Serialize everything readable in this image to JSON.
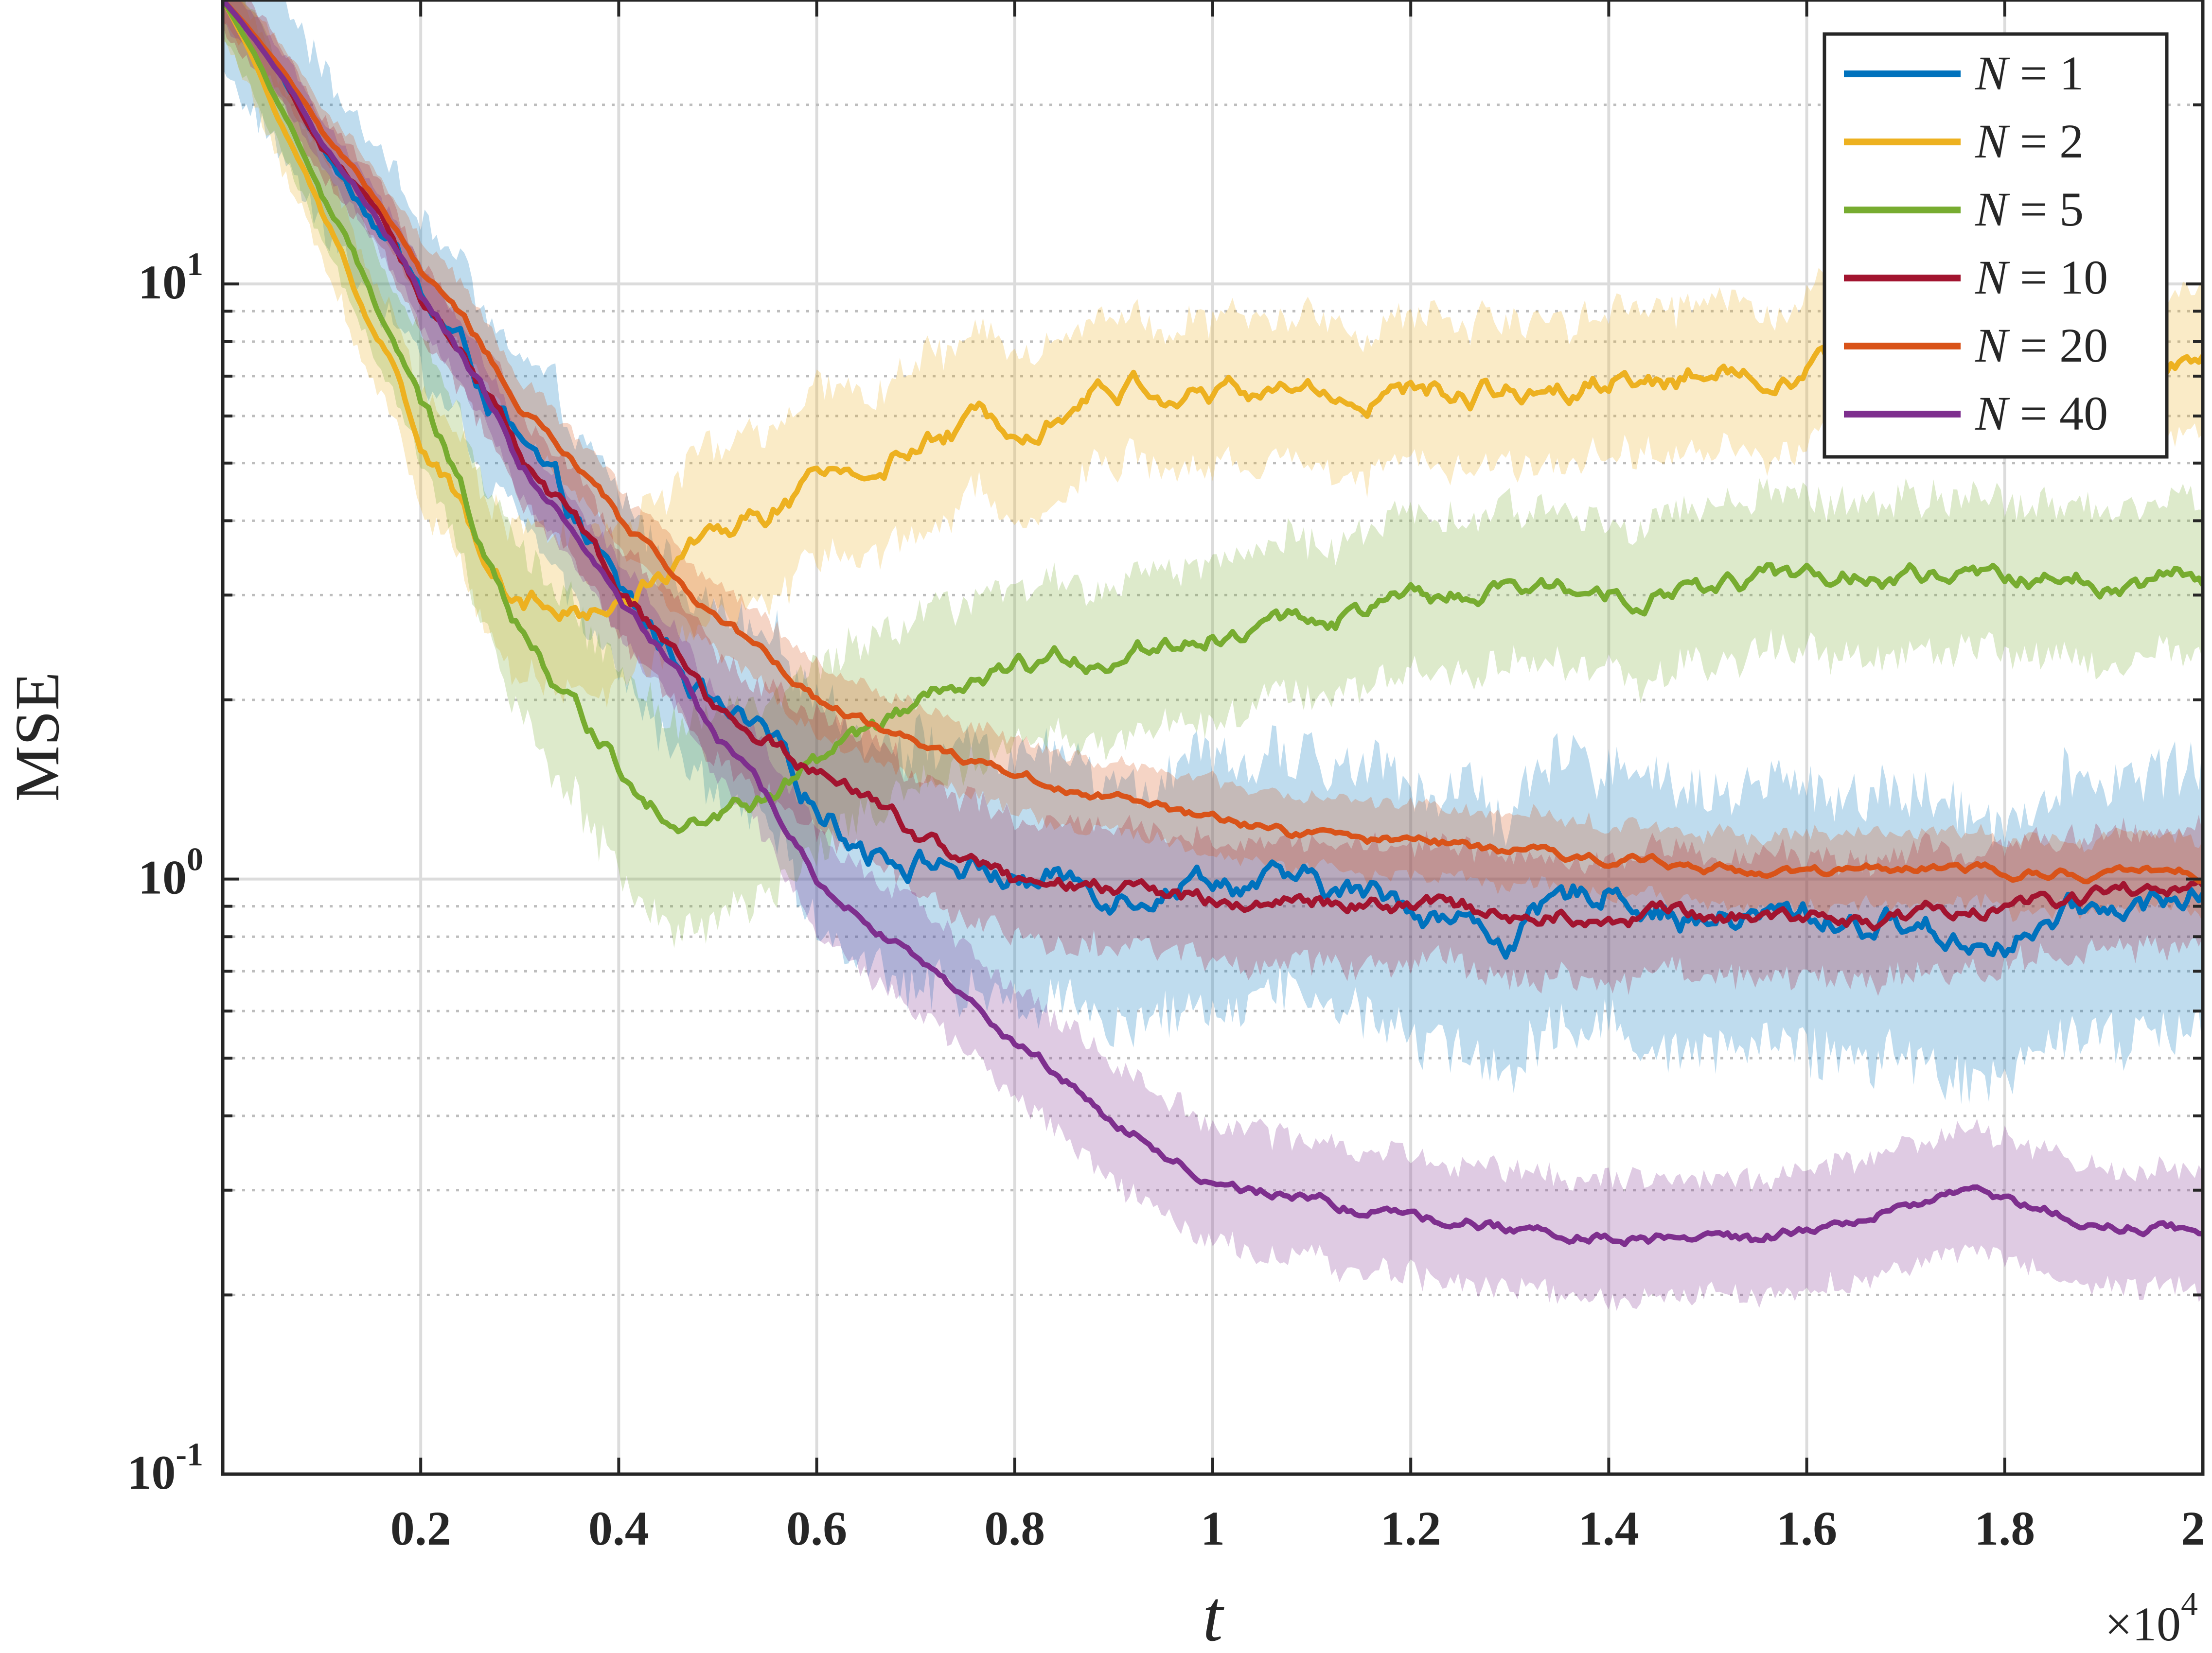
{
  "chart_data": {
    "type": "line",
    "xlabel": "t",
    "ylabel": "MSE",
    "x_multiplier": "×10",
    "x_multiplier_exp": "4",
    "xlim": [
      0,
      20000
    ],
    "ylim": [
      0.1,
      30
    ],
    "yscale": "log",
    "grid": true,
    "legend_position": "top-right",
    "x_ticks": [
      {
        "value": 2000,
        "label": "0.2"
      },
      {
        "value": 4000,
        "label": "0.4"
      },
      {
        "value": 6000,
        "label": "0.6"
      },
      {
        "value": 8000,
        "label": "0.8"
      },
      {
        "value": 10000,
        "label": "1"
      },
      {
        "value": 12000,
        "label": "1.2"
      },
      {
        "value": 14000,
        "label": "1.4"
      },
      {
        "value": 16000,
        "label": "1.6"
      },
      {
        "value": 18000,
        "label": "1.8"
      },
      {
        "value": 20000,
        "label": "2"
      }
    ],
    "y_ticks": [
      {
        "value": 0.1,
        "base": "10",
        "exp": "-1"
      },
      {
        "value": 1,
        "base": "10",
        "exp": "0"
      },
      {
        "value": 10,
        "base": "10",
        "exp": "1"
      }
    ],
    "series": [
      {
        "name": "N = 1",
        "name_var": "N",
        "name_val": "1",
        "color": "#0072BD",
        "x": [
          0,
          1000,
          2000,
          3000,
          4000,
          5000,
          6000,
          6500,
          7000,
          8000,
          9000,
          10000,
          11000,
          12000,
          12500,
          13000,
          13500,
          14000,
          15000,
          16000,
          17000,
          17500,
          18000,
          19000,
          20000
        ],
        "y": [
          30,
          17,
          9.5,
          5.2,
          2.95,
          1.9,
          1.35,
          1.15,
          1.1,
          1.0,
          0.97,
          1.03,
          0.95,
          0.92,
          0.85,
          0.8,
          0.88,
          0.98,
          0.85,
          0.86,
          0.84,
          0.8,
          0.8,
          0.88,
          0.95
        ],
        "band": [
          0.13,
          0.13,
          0.13,
          0.14,
          0.15,
          0.16,
          0.18,
          0.2,
          0.2,
          0.2,
          0.2,
          0.2,
          0.2,
          0.21,
          0.22,
          0.22,
          0.22,
          0.22,
          0.22,
          0.22,
          0.22,
          0.22,
          0.22,
          0.22,
          0.22
        ]
      },
      {
        "name": "N = 2",
        "name_var": "N",
        "name_val": "2",
        "color": "#EDB120",
        "x": [
          0,
          500,
          1000,
          1500,
          2000,
          2500,
          3000,
          3500,
          4000,
          4500,
          5000,
          6000,
          7000,
          8000,
          9000,
          10000,
          11000,
          12000,
          13000,
          14000,
          15000,
          16000,
          17000,
          18000,
          19000,
          20000
        ],
        "y": [
          30,
          20,
          13,
          8.5,
          5.5,
          3.8,
          3.0,
          2.75,
          2.85,
          3.3,
          3.8,
          4.5,
          5.3,
          6.0,
          6.8,
          6.5,
          6.6,
          6.5,
          6.7,
          7.0,
          7.1,
          7.3,
          7.4,
          7.5,
          7.4,
          7.3
        ],
        "band": [
          0.06,
          0.07,
          0.08,
          0.09,
          0.1,
          0.11,
          0.12,
          0.13,
          0.13,
          0.14,
          0.14,
          0.14,
          0.14,
          0.13,
          0.12,
          0.12,
          0.12,
          0.12,
          0.12,
          0.12,
          0.12,
          0.12,
          0.12,
          0.12,
          0.12,
          0.12
        ]
      },
      {
        "name": "N = 5",
        "name_var": "N",
        "name_val": "5",
        "color": "#77AC30",
        "x": [
          0,
          500,
          1000,
          1500,
          2000,
          2500,
          3000,
          3500,
          4000,
          4500,
          5000,
          5500,
          6000,
          7000,
          8000,
          9000,
          10000,
          11000,
          12000,
          13000,
          14000,
          15000,
          16000,
          17000,
          18000,
          19000,
          20000
        ],
        "y": [
          30,
          21,
          14,
          9.5,
          6.2,
          4.1,
          2.7,
          2.0,
          1.55,
          1.32,
          1.28,
          1.35,
          1.55,
          1.9,
          2.2,
          2.4,
          2.6,
          2.75,
          2.9,
          3.0,
          3.05,
          3.1,
          3.2,
          3.2,
          3.15,
          3.2,
          3.2
        ],
        "band": [
          0.06,
          0.07,
          0.08,
          0.09,
          0.1,
          0.12,
          0.14,
          0.16,
          0.17,
          0.17,
          0.17,
          0.16,
          0.15,
          0.14,
          0.13,
          0.13,
          0.13,
          0.13,
          0.13,
          0.13,
          0.13,
          0.13,
          0.13,
          0.13,
          0.13,
          0.13,
          0.13
        ]
      },
      {
        "name": "N = 10",
        "name_var": "N",
        "name_val": "10",
        "color": "#A2142F",
        "x": [
          0,
          1000,
          2000,
          3000,
          4000,
          5000,
          6000,
          7000,
          8000,
          9000,
          10000,
          11000,
          12000,
          13000,
          14000,
          15000,
          16000,
          17000,
          18000,
          19000,
          20000
        ],
        "y": [
          30,
          17,
          9.5,
          5.2,
          2.95,
          1.9,
          1.5,
          1.2,
          0.98,
          0.95,
          0.93,
          0.92,
          0.9,
          0.88,
          0.88,
          0.87,
          0.86,
          0.87,
          0.9,
          0.93,
          0.96
        ],
        "band": [
          0.05,
          0.05,
          0.06,
          0.07,
          0.08,
          0.09,
          0.1,
          0.1,
          0.1,
          0.1,
          0.1,
          0.1,
          0.1,
          0.1,
          0.1,
          0.1,
          0.1,
          0.1,
          0.1,
          0.1,
          0.1
        ]
      },
      {
        "name": "N = 20",
        "name_var": "N",
        "name_val": "20",
        "color": "#D95319",
        "x": [
          0,
          1000,
          2000,
          3000,
          4000,
          5000,
          6000,
          7000,
          8000,
          9000,
          10000,
          11000,
          12000,
          13000,
          14000,
          15000,
          16000,
          17000,
          18000,
          19000,
          20000
        ],
        "y": [
          30,
          18,
          10.5,
          6.2,
          4.0,
          2.7,
          2.0,
          1.7,
          1.5,
          1.38,
          1.25,
          1.18,
          1.15,
          1.12,
          1.08,
          1.05,
          1.03,
          1.03,
          1.03,
          1.02,
          1.02
        ],
        "band": [
          0.04,
          0.04,
          0.05,
          0.05,
          0.05,
          0.06,
          0.06,
          0.06,
          0.06,
          0.06,
          0.06,
          0.06,
          0.06,
          0.06,
          0.06,
          0.06,
          0.06,
          0.06,
          0.06,
          0.06,
          0.06
        ]
      },
      {
        "name": "N = 40",
        "name_var": "N",
        "name_val": "40",
        "color": "#7E2F8E",
        "x": [
          0,
          1000,
          2000,
          3000,
          4000,
          5000,
          6000,
          7000,
          8000,
          9000,
          10000,
          11000,
          12000,
          13000,
          14000,
          15000,
          15500,
          16000,
          17000,
          17500,
          18000,
          19000,
          20000
        ],
        "y": [
          30,
          17,
          9.5,
          5.0,
          2.9,
          1.7,
          1.0,
          0.72,
          0.53,
          0.39,
          0.31,
          0.285,
          0.275,
          0.26,
          0.255,
          0.245,
          0.24,
          0.26,
          0.28,
          0.3,
          0.285,
          0.265,
          0.255
        ],
        "band": [
          0.04,
          0.04,
          0.05,
          0.05,
          0.06,
          0.07,
          0.08,
          0.09,
          0.09,
          0.1,
          0.1,
          0.1,
          0.1,
          0.1,
          0.1,
          0.1,
          0.1,
          0.1,
          0.1,
          0.1,
          0.1,
          0.1,
          0.1
        ]
      }
    ]
  }
}
